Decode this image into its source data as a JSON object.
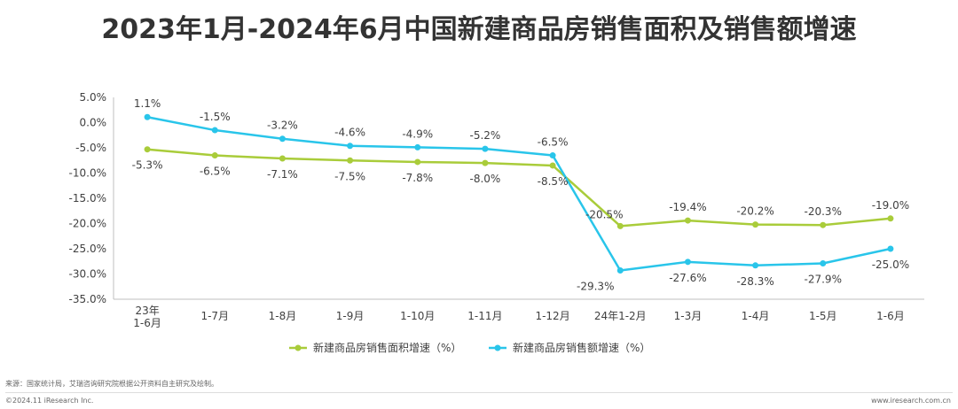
{
  "title": "2023年1月-2024年6月中国新建商品房销售面积及销售额增速",
  "footer": {
    "source": "来源：国家统计局，艾瑞咨询研究院根据公开资料自主研究及绘制。",
    "copyright": "©2024.11 iResearch Inc.",
    "website": "www.iresearch.com.cn"
  },
  "colors": {
    "area_series": "#a9cc3a",
    "amount_series": "#29c5ea",
    "axis": "#bfbfbf",
    "text": "#404040"
  },
  "chart_data": {
    "type": "line",
    "categories": [
      "23年\n1-6月",
      "1-7月",
      "1-8月",
      "1-9月",
      "1-10月",
      "1-11月",
      "1-12月",
      "24年1-2月",
      "1-3月",
      "1-4月",
      "1-5月",
      "1-6月"
    ],
    "y_ticks": [
      "5.0%",
      "0.0%",
      "-5.0%",
      "-10.0%",
      "-15.0%",
      "-20.0%",
      "-25.0%",
      "-30.0%",
      "-35.0%"
    ],
    "ylim": [
      -35,
      5
    ],
    "grid": false,
    "legend_position": "bottom",
    "series": [
      {
        "name": "新建商品房销售面积增速（%）",
        "values": [
          -5.3,
          -6.5,
          -7.1,
          -7.5,
          -7.8,
          -8.0,
          -8.5,
          -20.5,
          -19.4,
          -20.2,
          -20.3,
          -19.0
        ],
        "labels": [
          "-5.3%",
          "-6.5%",
          "-7.1%",
          "-7.5%",
          "-7.8%",
          "-8.0%",
          "-8.5%",
          "-20.5%",
          "-19.4%",
          "-20.2%",
          "-20.3%",
          "-19.0%"
        ]
      },
      {
        "name": "新建商品房销售额增速（%）",
        "values": [
          1.1,
          -1.5,
          -3.2,
          -4.6,
          -4.9,
          -5.2,
          -6.5,
          -29.3,
          -27.6,
          -28.3,
          -27.9,
          -25.0
        ],
        "labels": [
          "1.1%",
          "-1.5%",
          "-3.2%",
          "-4.6%",
          "-4.9%",
          "-5.2%",
          "-6.5%",
          "-29.3%",
          "-27.6%",
          "-28.3%",
          "-27.9%",
          "-25.0%"
        ]
      }
    ]
  }
}
